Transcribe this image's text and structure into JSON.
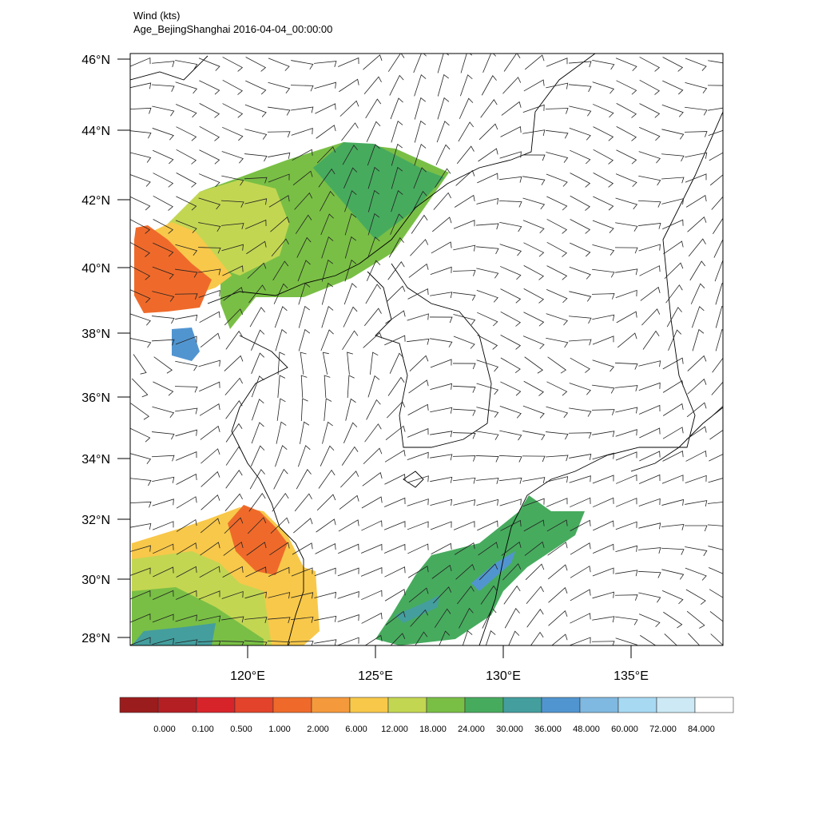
{
  "header": {
    "title": "Wind   (kts)",
    "subtitle": "Age_BejingShanghai  2016-04-04_00:00:00"
  },
  "lat_ticks": [
    "46°N",
    "44°N",
    "42°N",
    "40°N",
    "38°N",
    "36°N",
    "34°N",
    "32°N",
    "30°N",
    "28°N"
  ],
  "lon_ticks": [
    "120°E",
    "125°E",
    "130°E",
    "135°E"
  ],
  "colorbar": {
    "colors": [
      "#9b1c1c",
      "#b41f24",
      "#d7242a",
      "#e2432a",
      "#ef6a2a",
      "#f59a3c",
      "#f8c84a",
      "#c3d652",
      "#79bf45",
      "#47ab5e",
      "#449e9e",
      "#5195d0",
      "#7fb8e0",
      "#a7d9f3",
      "#cde9f6",
      "#ffffff"
    ],
    "labels": [
      "0.000",
      "0.100",
      "0.500",
      "1.000",
      "2.000",
      "6.000",
      "12.000",
      "18.000",
      "24.000",
      "30.000",
      "36.000",
      "48.000",
      "60.000",
      "72.000",
      "84.000"
    ]
  }
}
